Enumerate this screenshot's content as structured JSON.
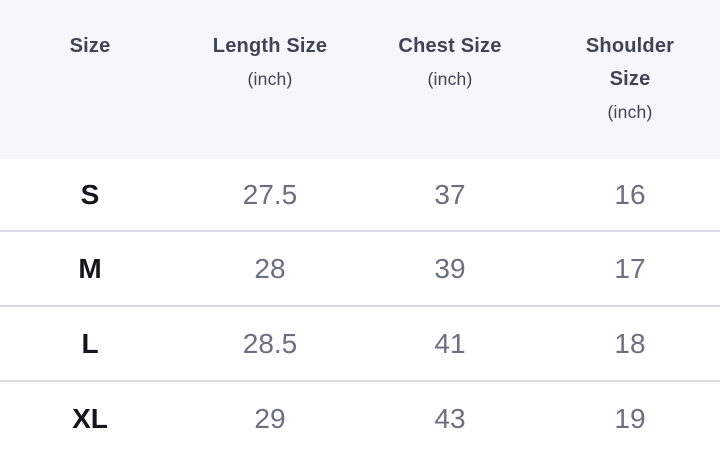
{
  "table": {
    "columns": [
      {
        "label": "Size",
        "sub": ""
      },
      {
        "label": "Length Size",
        "sub": "(inch)"
      },
      {
        "label": "Chest Size",
        "sub": "(inch)"
      },
      {
        "label": "Shoulder Size",
        "sub": "(inch)"
      }
    ],
    "rows": [
      {
        "size": "S",
        "length": "27.5",
        "chest": "37",
        "shoulder": "16"
      },
      {
        "size": "M",
        "length": "28",
        "chest": "39",
        "shoulder": "17"
      },
      {
        "size": "L",
        "length": "28.5",
        "chest": "41",
        "shoulder": "18"
      },
      {
        "size": "XL",
        "length": "29",
        "chest": "43",
        "shoulder": "19"
      }
    ]
  },
  "colors": {
    "header_bg": "#f6f7fc",
    "header_text": "#3f4354",
    "row_bg": "#ffffff",
    "divider": "#d9dae3",
    "size_text": "#14161c",
    "value_text": "#6b7080"
  }
}
